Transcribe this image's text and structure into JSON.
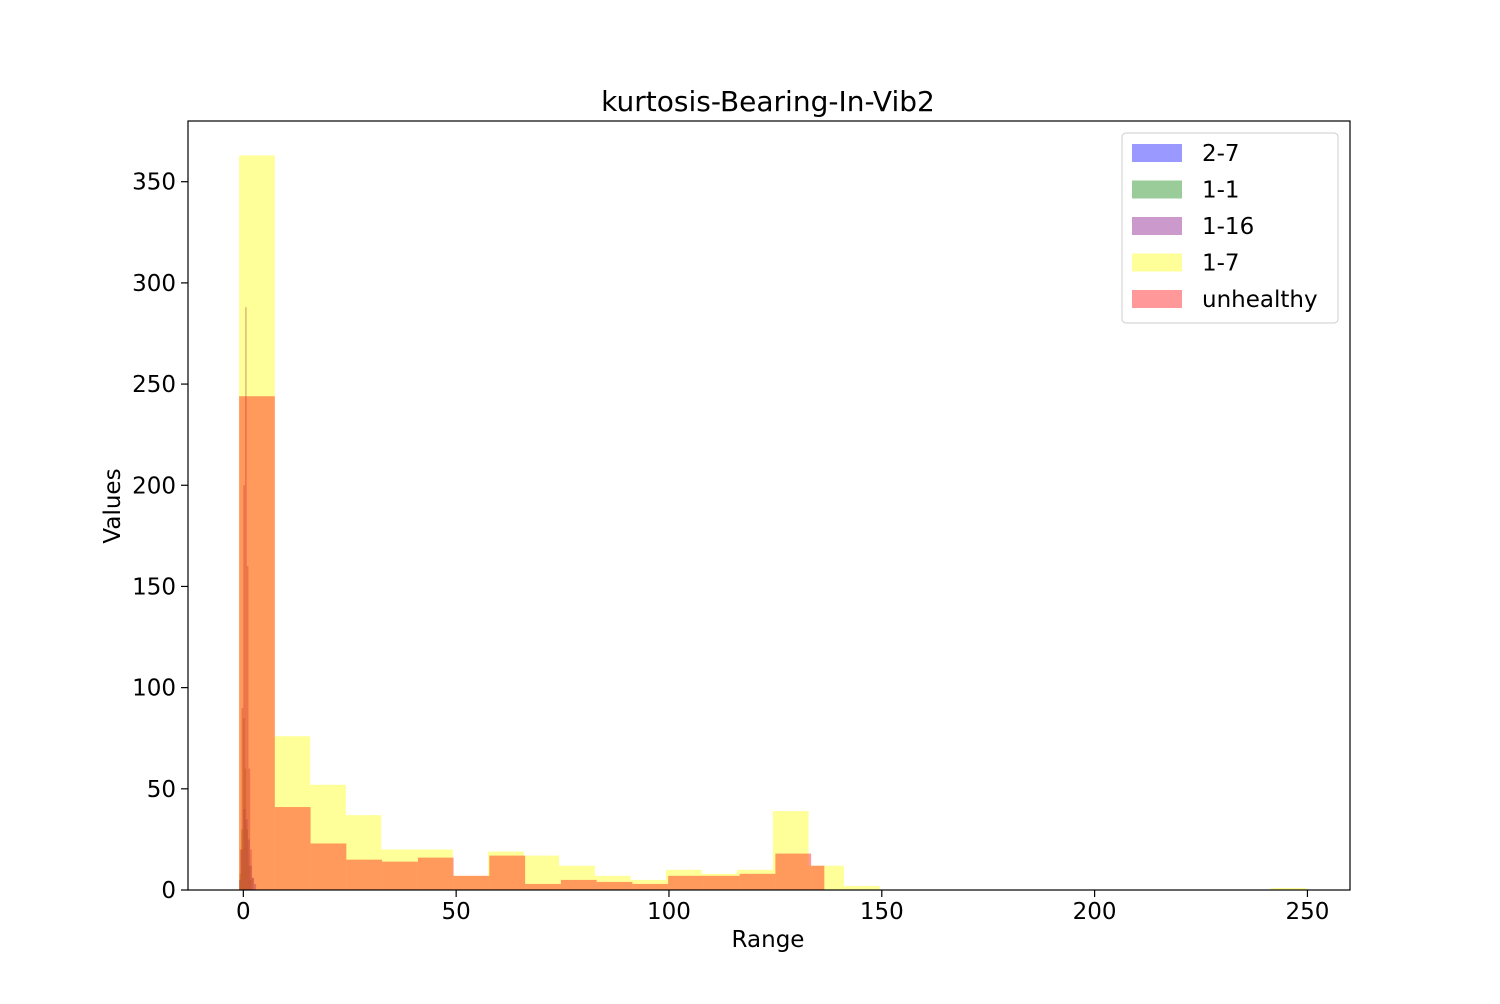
{
  "chart_data": {
    "type": "histogram",
    "title": "kurtosis-Bearing-In-Vib2",
    "xlabel": "Range",
    "ylabel": "Values",
    "xlim": [
      -13,
      260
    ],
    "ylim": [
      0,
      380
    ],
    "xticks": [
      0,
      50,
      100,
      150,
      200,
      250
    ],
    "yticks": [
      0,
      50,
      100,
      150,
      200,
      250,
      300,
      350
    ],
    "legend_position": "upper right",
    "grid": false,
    "series": [
      {
        "name": "2-7",
        "color": "#0000ff",
        "alpha": 0.4,
        "bins": [
          {
            "x0": -1.0,
            "x1": -0.5,
            "count": 5
          },
          {
            "x0": -0.5,
            "x1": 0.0,
            "count": 20
          },
          {
            "x0": 0.0,
            "x1": 0.5,
            "count": 40
          },
          {
            "x0": 0.5,
            "x1": 1.0,
            "count": 35
          },
          {
            "x0": 1.0,
            "x1": 1.5,
            "count": 25
          },
          {
            "x0": 1.5,
            "x1": 2.0,
            "count": 12
          },
          {
            "x0": 2.0,
            "x1": 2.5,
            "count": 6
          },
          {
            "x0": 2.5,
            "x1": 3.0,
            "count": 3
          }
        ]
      },
      {
        "name": "1-1",
        "color": "#008000",
        "alpha": 0.4,
        "bins": [
          {
            "x0": -0.9,
            "x1": -0.5,
            "count": 8
          },
          {
            "x0": -0.5,
            "x1": -0.1,
            "count": 30
          },
          {
            "x0": -0.1,
            "x1": 0.3,
            "count": 85
          },
          {
            "x0": 0.3,
            "x1": 0.7,
            "count": 60
          },
          {
            "x0": 0.7,
            "x1": 1.1,
            "count": 30
          },
          {
            "x0": 1.1,
            "x1": 1.5,
            "count": 12
          },
          {
            "x0": 1.5,
            "x1": 1.9,
            "count": 5
          }
        ]
      },
      {
        "name": "1-16",
        "color": "#800080",
        "alpha": 0.4,
        "bins": [
          {
            "x0": -0.8,
            "x1": -0.4,
            "count": 20
          },
          {
            "x0": -0.4,
            "x1": 0.0,
            "count": 90
          },
          {
            "x0": 0.0,
            "x1": 0.4,
            "count": 200
          },
          {
            "x0": 0.4,
            "x1": 0.8,
            "count": 288
          },
          {
            "x0": 0.8,
            "x1": 1.2,
            "count": 160
          },
          {
            "x0": 1.2,
            "x1": 1.6,
            "count": 60
          },
          {
            "x0": 1.6,
            "x1": 2.0,
            "count": 20
          },
          {
            "x0": 2.0,
            "x1": 2.4,
            "count": 6
          }
        ]
      },
      {
        "name": "1-7",
        "color": "#ffff00",
        "alpha": 0.4,
        "bins": [
          {
            "x0": -1.0,
            "x1": 7.4,
            "count": 363
          },
          {
            "x0": 7.4,
            "x1": 15.7,
            "count": 76
          },
          {
            "x0": 15.7,
            "x1": 24.1,
            "count": 52
          },
          {
            "x0": 24.1,
            "x1": 32.4,
            "count": 37
          },
          {
            "x0": 32.4,
            "x1": 40.8,
            "count": 20
          },
          {
            "x0": 40.8,
            "x1": 49.2,
            "count": 20
          },
          {
            "x0": 49.2,
            "x1": 57.5,
            "count": 7
          },
          {
            "x0": 57.5,
            "x1": 65.9,
            "count": 19
          },
          {
            "x0": 65.9,
            "x1": 74.2,
            "count": 17
          },
          {
            "x0": 74.2,
            "x1": 82.6,
            "count": 12
          },
          {
            "x0": 82.6,
            "x1": 91.0,
            "count": 7
          },
          {
            "x0": 91.0,
            "x1": 99.3,
            "count": 5
          },
          {
            "x0": 99.3,
            "x1": 107.7,
            "count": 10
          },
          {
            "x0": 107.7,
            "x1": 116.0,
            "count": 8
          },
          {
            "x0": 116.0,
            "x1": 124.4,
            "count": 10
          },
          {
            "x0": 124.4,
            "x1": 132.8,
            "count": 39
          },
          {
            "x0": 132.8,
            "x1": 141.1,
            "count": 12
          },
          {
            "x0": 141.1,
            "x1": 149.5,
            "count": 2
          },
          {
            "x0": 149.5,
            "x1": 157.8,
            "count": 0
          },
          {
            "x0": 157.8,
            "x1": 166.2,
            "count": 0
          },
          {
            "x0": 166.2,
            "x1": 174.6,
            "count": 0
          },
          {
            "x0": 174.6,
            "x1": 182.9,
            "count": 0
          },
          {
            "x0": 182.9,
            "x1": 191.3,
            "count": 0
          },
          {
            "x0": 191.3,
            "x1": 199.6,
            "count": 0
          },
          {
            "x0": 199.6,
            "x1": 208.0,
            "count": 0
          },
          {
            "x0": 208.0,
            "x1": 216.4,
            "count": 0
          },
          {
            "x0": 216.4,
            "x1": 224.7,
            "count": 0
          },
          {
            "x0": 224.7,
            "x1": 233.1,
            "count": 0
          },
          {
            "x0": 233.1,
            "x1": 241.4,
            "count": 0
          },
          {
            "x0": 241.4,
            "x1": 249.8,
            "count": 1
          }
        ]
      },
      {
        "name": "unhealthy",
        "color": "#ff0000",
        "alpha": 0.4,
        "bins": [
          {
            "x0": -1.0,
            "x1": 7.4,
            "count": 244
          },
          {
            "x0": 7.4,
            "x1": 15.8,
            "count": 41
          },
          {
            "x0": 15.8,
            "x1": 24.2,
            "count": 23
          },
          {
            "x0": 24.2,
            "x1": 32.6,
            "count": 15
          },
          {
            "x0": 32.6,
            "x1": 41.0,
            "count": 14
          },
          {
            "x0": 41.0,
            "x1": 49.4,
            "count": 16
          },
          {
            "x0": 49.4,
            "x1": 57.8,
            "count": 7
          },
          {
            "x0": 57.8,
            "x1": 66.2,
            "count": 17
          },
          {
            "x0": 66.2,
            "x1": 74.6,
            "count": 3
          },
          {
            "x0": 74.6,
            "x1": 83.0,
            "count": 5
          },
          {
            "x0": 83.0,
            "x1": 91.4,
            "count": 4
          },
          {
            "x0": 91.4,
            "x1": 99.8,
            "count": 3
          },
          {
            "x0": 99.8,
            "x1": 108.2,
            "count": 7
          },
          {
            "x0": 108.2,
            "x1": 116.6,
            "count": 7
          },
          {
            "x0": 116.6,
            "x1": 125.0,
            "count": 8
          },
          {
            "x0": 125.0,
            "x1": 133.4,
            "count": 18
          },
          {
            "x0": 133.4,
            "x1": 136.5,
            "count": 12
          }
        ]
      }
    ]
  }
}
